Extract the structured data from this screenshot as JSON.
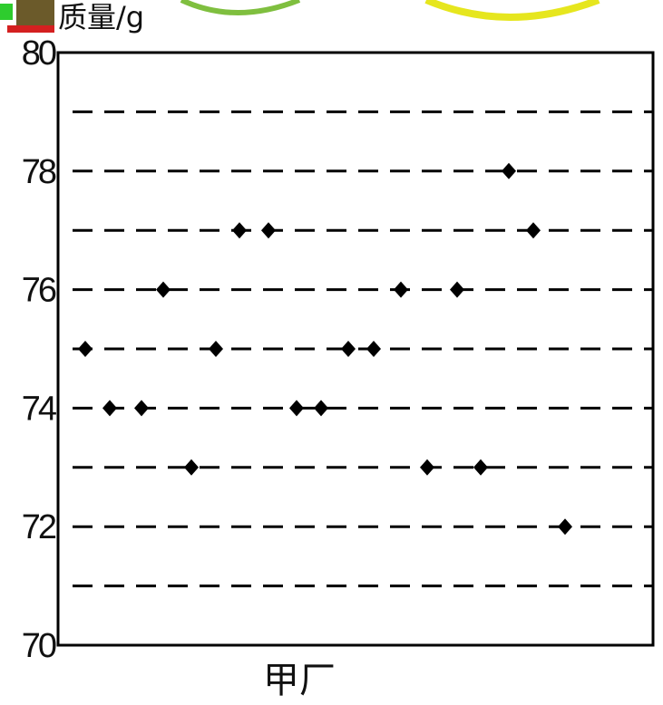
{
  "chart_data": {
    "type": "scatter",
    "ylabel": "质量/g",
    "xlabel": "甲厂",
    "ylim": [
      70,
      80
    ],
    "yticks": [
      "70",
      "72",
      "74",
      "76",
      "78",
      "80"
    ],
    "grid": "horizontal dashed at each unit",
    "series": [
      {
        "marker": "diamond",
        "color": "#000000",
        "x": [
          1,
          2,
          3,
          4,
          5,
          6,
          7,
          8,
          9,
          10,
          11,
          12,
          13,
          14,
          15,
          16,
          17,
          18,
          19,
          20
        ],
        "y": [
          75,
          74,
          74,
          76,
          73,
          75,
          77,
          77,
          74,
          74,
          75,
          75,
          76,
          73,
          76,
          73,
          78,
          77,
          72,
          null
        ]
      }
    ]
  }
}
